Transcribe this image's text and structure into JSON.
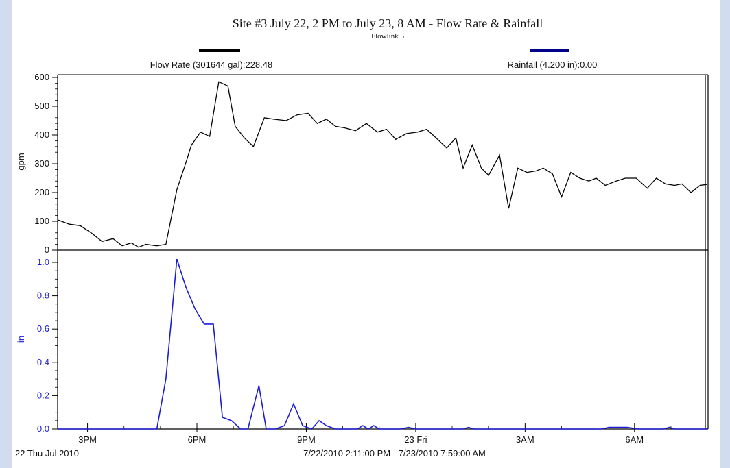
{
  "chart_data": {
    "type": "line",
    "title": "Site #3 July 22, 2 PM to July 23, 8 AM - Flow Rate & Rainfall",
    "subtitle": "Flowlink 5",
    "legend": [
      {
        "label": "Flow Rate (301644 gal):228.48",
        "color": "#000000"
      },
      {
        "label": "Rainfall (4.200 in):0.00",
        "color": "#00008b"
      }
    ],
    "x_ticks": [
      "3PM",
      "6PM",
      "9PM",
      "23 Fri",
      "3AM",
      "6AM"
    ],
    "x_tick_hours": [
      15,
      18,
      21,
      24,
      27,
      30
    ],
    "xlim_hours": [
      14.18,
      31.98
    ],
    "date_label": "22 Thu Jul 2010",
    "range_label": "7/22/2010 2:11:00 PM - 7/23/2010 7:59:00 AM",
    "flow": {
      "ylabel": "gpm",
      "ylim": [
        0,
        600
      ],
      "y_ticks": [
        "0",
        "100",
        "200",
        "300",
        "400",
        "500",
        "600"
      ],
      "x_hours": [
        14.18,
        14.5,
        14.8,
        15.1,
        15.4,
        15.7,
        15.95,
        16.2,
        16.4,
        16.6,
        16.9,
        17.15,
        17.45,
        17.7,
        17.85,
        18.1,
        18.35,
        18.6,
        18.85,
        19.05,
        19.3,
        19.55,
        19.85,
        20.1,
        20.45,
        20.75,
        21.05,
        21.3,
        21.55,
        21.8,
        22.05,
        22.35,
        22.65,
        22.95,
        23.2,
        23.45,
        23.75,
        24.05,
        24.3,
        24.6,
        24.85,
        25.1,
        25.3,
        25.55,
        25.8,
        26.0,
        26.3,
        26.55,
        26.8,
        27.05,
        27.3,
        27.5,
        27.75,
        28.0,
        28.25,
        28.5,
        28.75,
        28.95,
        29.2,
        29.5,
        29.75,
        30.05,
        30.35,
        30.6,
        30.85,
        31.1,
        31.3,
        31.55,
        31.8,
        31.98
      ],
      "y_values": [
        105,
        90,
        85,
        60,
        30,
        40,
        15,
        25,
        10,
        20,
        15,
        20,
        210,
        305,
        365,
        410,
        395,
        585,
        570,
        430,
        390,
        360,
        460,
        455,
        450,
        470,
        475,
        440,
        455,
        430,
        425,
        415,
        440,
        410,
        420,
        385,
        405,
        410,
        420,
        385,
        355,
        390,
        285,
        365,
        285,
        260,
        330,
        145,
        285,
        270,
        275,
        285,
        265,
        185,
        270,
        250,
        240,
        250,
        225,
        240,
        250,
        250,
        215,
        250,
        230,
        225,
        230,
        200,
        225,
        228
      ]
    },
    "rain": {
      "ylabel": "in",
      "ylim": [
        0,
        1.0
      ],
      "y_ticks": [
        "0.0",
        "0.2",
        "0.4",
        "0.6",
        "0.8",
        "1.0"
      ],
      "x_hours": [
        14.18,
        16.9,
        17.15,
        17.45,
        17.7,
        17.95,
        18.2,
        18.45,
        18.7,
        18.95,
        19.2,
        19.4,
        19.7,
        19.9,
        20.15,
        20.4,
        20.65,
        20.9,
        21.15,
        21.35,
        21.55,
        21.8,
        22.1,
        22.4,
        22.55,
        22.7,
        22.85,
        23.0,
        23.15,
        23.4,
        23.6,
        23.8,
        24.0,
        24.3,
        24.5,
        24.7,
        25.0,
        25.3,
        25.45,
        25.6,
        25.9,
        26.0,
        26.2,
        27.0,
        29.1,
        29.3,
        29.8,
        30.1,
        30.8,
        30.95,
        31.1,
        31.98
      ],
      "y_values": [
        0,
        0,
        0.3,
        1.02,
        0.85,
        0.72,
        0.63,
        0.63,
        0.07,
        0.05,
        0.0,
        0.0,
        0.26,
        0.0,
        0.0,
        0.02,
        0.15,
        0.02,
        0.0,
        0.05,
        0.02,
        0.0,
        0.0,
        0.0,
        0.02,
        0.0,
        0.02,
        0.0,
        0.0,
        0.0,
        0.0,
        0.01,
        0.0,
        0.0,
        0.0,
        0.0,
        0.0,
        0.0,
        0.01,
        0.0,
        0.0,
        0.0,
        0.0,
        0.0,
        0.0,
        0.01,
        0.01,
        0.0,
        0.0,
        0.01,
        0.0,
        0.0
      ]
    }
  }
}
